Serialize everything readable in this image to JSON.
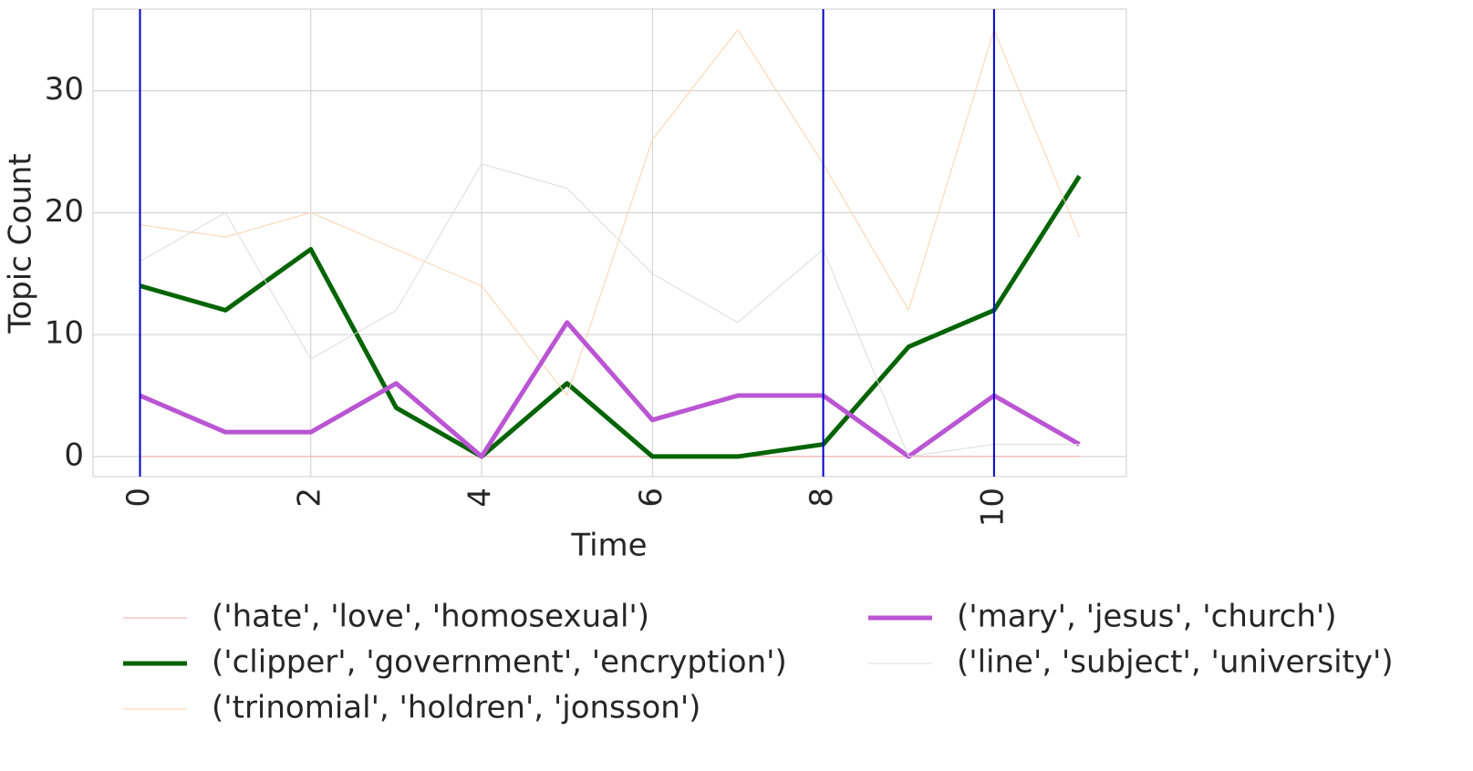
{
  "chart_data": {
    "type": "line",
    "x_label": "Time",
    "y_label": "Topic Count",
    "x": [
      0,
      1,
      2,
      3,
      4,
      5,
      6,
      7,
      8,
      9,
      10,
      11
    ],
    "series": [
      {
        "name": "('hate', 'love', 'homosexual')",
        "color": "#f2a5a5",
        "linewidth": 1,
        "values": [
          0,
          0,
          0,
          0,
          0,
          0,
          0,
          0,
          0,
          0,
          0,
          0
        ]
      },
      {
        "name": "('clipper', 'government', 'encryption')",
        "color": "#006400",
        "linewidth": 5,
        "values": [
          14,
          12,
          17,
          4,
          0,
          6,
          0,
          0,
          1,
          9,
          12,
          23
        ]
      },
      {
        "name": "('trinomial', 'holdren', 'jonsson')",
        "color": "#fdd2ac",
        "linewidth": 1,
        "values": [
          19,
          18,
          20,
          17,
          14,
          5,
          26,
          35,
          24,
          12,
          35,
          18
        ]
      },
      {
        "name": "('mary', 'jesus', 'church')",
        "color": "#ba55d3",
        "linewidth": 5,
        "values": [
          5,
          2,
          2,
          6,
          0,
          11,
          3,
          5,
          5,
          0,
          5,
          1
        ]
      },
      {
        "name": "('line', 'subject', 'university')",
        "color": "#dcdcdc",
        "linewidth": 1,
        "values": [
          16,
          20,
          8,
          12,
          24,
          22,
          15,
          11,
          17,
          0,
          1,
          1
        ]
      }
    ],
    "vlines": [
      0,
      8,
      10
    ],
    "vline_color": "#0000cd",
    "xlim": [
      -0.55,
      11.55
    ],
    "ylim": [
      -1.65,
      36.7
    ],
    "xticks": [
      0,
      2,
      4,
      6,
      8,
      10
    ],
    "yticks": [
      0,
      10,
      20,
      30
    ],
    "grid": true,
    "legend": "bottom"
  }
}
